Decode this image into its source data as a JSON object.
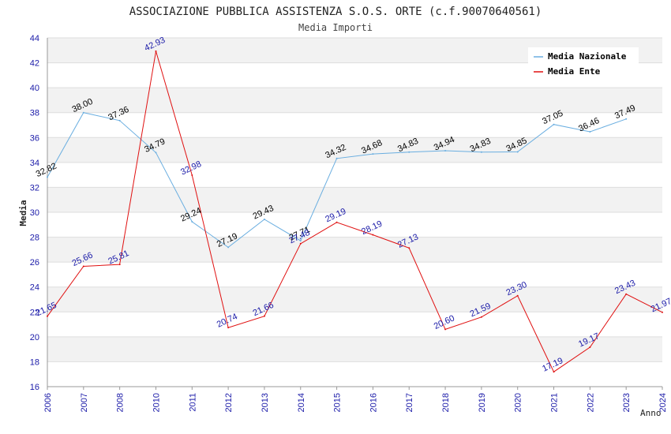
{
  "chart_data": {
    "type": "line",
    "title": "ASSOCIAZIONE PUBBLICA ASSISTENZA S.O.S. ORTE (c.f.90070640561)",
    "subtitle": "Media Importi",
    "xlabel": "Anno",
    "ylabel": "Media",
    "ylim": [
      16,
      44
    ],
    "yticks": [
      "16",
      "18",
      "20",
      "22",
      "24",
      "26",
      "28",
      "30",
      "32",
      "34",
      "36",
      "38",
      "40",
      "42",
      "44"
    ],
    "categories": [
      "2006",
      "2007",
      "2008",
      "2010",
      "2011",
      "2012",
      "2013",
      "2014",
      "2015",
      "2016",
      "2017",
      "2018",
      "2019",
      "2020",
      "2021",
      "2022",
      "2023",
      "2024"
    ],
    "legend_position": "top-right",
    "series": [
      {
        "name": "Media Nazionale",
        "color": "#6aaee0",
        "values": [
          32.82,
          38.0,
          37.36,
          34.79,
          29.24,
          27.19,
          29.43,
          27.71,
          34.32,
          34.68,
          34.83,
          34.94,
          34.83,
          34.85,
          37.05,
          36.46,
          37.49,
          null
        ],
        "labels": [
          "32.82",
          "38.00",
          "37.36",
          "34.79",
          "29.24",
          "27.19",
          "29.43",
          "27.71",
          "34.32",
          "34.68",
          "34.83",
          "34.94",
          "34.83",
          "34.85",
          "37.05",
          "36.46",
          "37.49",
          null
        ]
      },
      {
        "name": "Media Ente",
        "color": "#e01010",
        "values": [
          21.65,
          25.66,
          25.81,
          42.93,
          32.98,
          20.74,
          21.66,
          27.48,
          29.19,
          28.19,
          27.13,
          20.6,
          21.59,
          23.3,
          17.19,
          19.17,
          23.43,
          21.97
        ],
        "labels": [
          "21.65",
          "25.66",
          "25.81",
          "42.93",
          "32.98",
          "20.74",
          "21.66",
          "27.48",
          "29.19",
          "28.19",
          "27.13",
          "20.60",
          "21.59",
          "23.30",
          "17.19",
          "19.17",
          "23.43",
          "21.97"
        ]
      }
    ]
  }
}
